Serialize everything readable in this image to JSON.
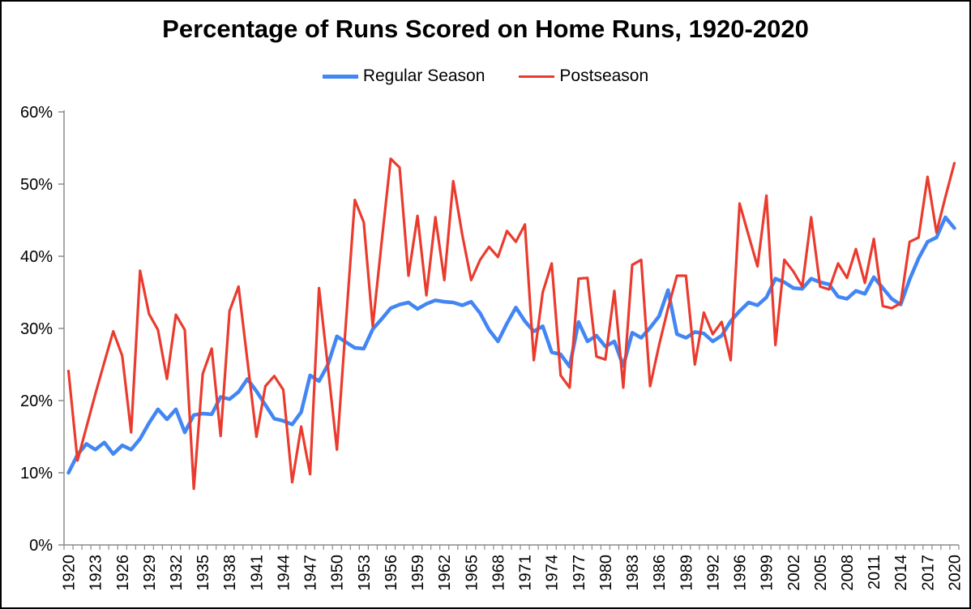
{
  "chart": {
    "title": "Percentage of Runs Scored on Home Runs, 1920-2020",
    "legend_position": "top",
    "series_meta": [
      {
        "name": "Regular Season",
        "color": "#4285f4",
        "thickness": 4.5
      },
      {
        "name": "Postseason",
        "color": "#ea3b2e",
        "thickness": 3.2
      }
    ],
    "axis_color": "#8c8c8c",
    "text_color": "#000000",
    "background_color": "#ffffff"
  },
  "chart_data": {
    "type": "line",
    "title": "Percentage of Runs Scored on Home Runs, 1920-2020",
    "xlabel": "",
    "ylabel": "",
    "ylim": [
      0,
      60
    ],
    "y_ticks": [
      "0%",
      "10%",
      "20%",
      "30%",
      "40%",
      "50%",
      "60%"
    ],
    "x_label_step": 3,
    "grid": false,
    "note_visible_categories": "1994 season is absent from the category axis",
    "categories": [
      1920,
      1921,
      1922,
      1923,
      1924,
      1925,
      1926,
      1927,
      1928,
      1929,
      1930,
      1931,
      1932,
      1933,
      1934,
      1935,
      1936,
      1937,
      1938,
      1939,
      1940,
      1941,
      1942,
      1943,
      1944,
      1945,
      1946,
      1947,
      1948,
      1949,
      1950,
      1951,
      1952,
      1953,
      1954,
      1955,
      1956,
      1957,
      1958,
      1959,
      1960,
      1961,
      1962,
      1963,
      1964,
      1965,
      1966,
      1967,
      1968,
      1969,
      1970,
      1971,
      1972,
      1973,
      1974,
      1975,
      1976,
      1977,
      1978,
      1979,
      1980,
      1981,
      1982,
      1983,
      1984,
      1985,
      1986,
      1987,
      1988,
      1989,
      1990,
      1991,
      1992,
      1993,
      1995,
      1996,
      1997,
      1998,
      1999,
      2000,
      2001,
      2002,
      2003,
      2004,
      2005,
      2006,
      2007,
      2008,
      2009,
      2010,
      2011,
      2012,
      2013,
      2014,
      2015,
      2016,
      2017,
      2018,
      2019,
      2020
    ],
    "series": [
      {
        "name": "Regular Season",
        "values": [
          10.0,
          12.5,
          14.0,
          13.2,
          14.2,
          12.6,
          13.8,
          13.2,
          14.7,
          16.9,
          18.8,
          17.4,
          18.8,
          15.6,
          18.0,
          18.2,
          18.1,
          20.5,
          20.2,
          21.2,
          23.0,
          21.3,
          19.4,
          17.5,
          17.2,
          16.7,
          18.4,
          23.5,
          22.7,
          25.0,
          28.9,
          28.1,
          27.3,
          27.2,
          29.9,
          31.3,
          32.8,
          33.3,
          33.6,
          32.7,
          33.4,
          33.9,
          33.7,
          33.6,
          33.2,
          33.7,
          32.1,
          29.8,
          28.2,
          30.7,
          32.9,
          31.0,
          29.6,
          30.3,
          26.7,
          26.4,
          24.7,
          30.9,
          28.2,
          29.0,
          27.5,
          28.2,
          24.8,
          29.4,
          28.7,
          30.1,
          31.7,
          35.3,
          29.2,
          28.7,
          29.5,
          29.3,
          28.2,
          29.0,
          31.0,
          32.4,
          33.6,
          33.2,
          34.3,
          36.9,
          36.4,
          35.6,
          35.5,
          36.9,
          36.4,
          36.1,
          34.4,
          34.1,
          35.2,
          34.8,
          37.1,
          35.6,
          34.1,
          33.3,
          36.8,
          39.7,
          42.0,
          42.6,
          45.4,
          43.9
        ]
      },
      {
        "name": "Postseason",
        "values": [
          24.1,
          11.7,
          16.3,
          20.9,
          25.3,
          29.6,
          26.2,
          15.6,
          38.0,
          32.0,
          29.8,
          23.0,
          31.9,
          29.8,
          7.8,
          23.7,
          27.2,
          15.1,
          32.4,
          35.8,
          25.5,
          15.0,
          22.0,
          23.4,
          21.5,
          8.7,
          16.4,
          9.8,
          35.6,
          24.5,
          13.2,
          30.8,
          47.8,
          44.7,
          30.3,
          42.0,
          53.5,
          52.3,
          37.3,
          45.6,
          34.6,
          45.4,
          36.7,
          50.4,
          43.0,
          36.7,
          39.5,
          41.3,
          39.9,
          43.5,
          42.0,
          44.4,
          25.6,
          35.0,
          39.0,
          23.5,
          21.8,
          36.9,
          37.0,
          26.1,
          25.7,
          35.2,
          21.8,
          38.8,
          39.5,
          22.0,
          27.7,
          32.8,
          37.3,
          37.3,
          25.0,
          32.2,
          29.2,
          30.9,
          25.6,
          47.3,
          42.9,
          38.6,
          48.4,
          27.7,
          39.5,
          37.9,
          35.8,
          45.4,
          35.8,
          35.4,
          39.0,
          37.0,
          41.0,
          36.3,
          42.4,
          33.1,
          32.8,
          33.5,
          42.0,
          42.6,
          51.0,
          43.3,
          48.2,
          52.9
        ]
      }
    ]
  }
}
